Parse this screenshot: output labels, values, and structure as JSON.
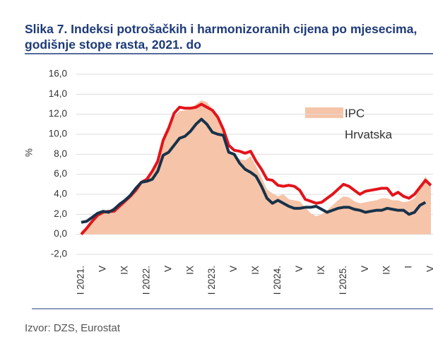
{
  "chart_data": {
    "type": "line",
    "title": "Slika 7. Indeksi potrošačkih i harmonizoranih cijena po mjesecima, godišnje stope rasta, 2021. do",
    "y_label": "%",
    "categories": [
      "I 2021.",
      null,
      null,
      null,
      "V",
      null,
      null,
      null,
      "IX",
      null,
      null,
      null,
      "I 2022.",
      null,
      null,
      null,
      "V",
      null,
      null,
      null,
      "IX",
      null,
      null,
      null,
      "I 2023.",
      null,
      null,
      null,
      "V",
      null,
      null,
      null,
      "IX",
      null,
      null,
      null,
      "I 2024.",
      null,
      null,
      null,
      "V",
      null,
      null,
      null,
      "IX",
      null,
      null,
      null,
      "I 2025.",
      null,
      null,
      null,
      "V",
      null,
      null,
      null,
      "IX",
      null,
      null,
      null,
      "I",
      null,
      null,
      null,
      "V"
    ],
    "series": [
      {
        "name": "IPC Hrvatska",
        "kind": "area",
        "color": "#f6c4a8",
        "values": [
          0.3,
          0.8,
          1.5,
          2.0,
          2.2,
          2.3,
          2.5,
          2.8,
          3.2,
          3.6,
          4.3,
          5.0,
          5.3,
          6.0,
          7.0,
          9.0,
          10.5,
          11.8,
          12.3,
          12.4,
          12.5,
          13.0,
          13.4,
          13.2,
          12.5,
          11.5,
          10.2,
          8.5,
          7.8,
          7.5,
          7.4,
          7.8,
          6.8,
          5.7,
          4.5,
          4.1,
          3.8,
          4.0,
          3.5,
          3.4,
          3.3,
          2.7,
          2.1,
          1.8,
          2.0,
          2.4,
          2.9,
          3.4,
          3.8,
          3.7,
          3.3,
          3.1,
          3.2,
          3.3,
          3.4,
          3.6,
          3.6,
          3.4,
          3.4,
          3.2,
          3.3,
          3.6,
          4.7,
          5.8,
          5.0
        ]
      },
      {
        "color": "#e3141b",
        "values": [
          0.0,
          0.6,
          1.3,
          1.9,
          2.2,
          2.3,
          2.3,
          2.8,
          3.3,
          3.8,
          4.4,
          5.2,
          5.5,
          6.3,
          7.3,
          9.4,
          10.6,
          12.1,
          12.7,
          12.6,
          12.6,
          12.7,
          13.0,
          12.7,
          12.4,
          11.7,
          10.5,
          8.9,
          8.4,
          8.3,
          8.1,
          8.3,
          7.3,
          6.5,
          5.5,
          5.4,
          4.9,
          4.8,
          4.9,
          4.8,
          4.4,
          3.5,
          3.3,
          3.1,
          3.2,
          3.6,
          4.0,
          4.5,
          5.0,
          4.8,
          4.4,
          4.0,
          4.3,
          4.4,
          4.5,
          4.6,
          4.6,
          3.9,
          4.2,
          3.8,
          3.6,
          4.0,
          4.7,
          5.4,
          4.9
        ]
      },
      {
        "color": "#17324a",
        "values": [
          1.2,
          1.3,
          1.7,
          2.1,
          2.3,
          2.2,
          2.5,
          3.0,
          3.4,
          3.9,
          4.6,
          5.2,
          5.3,
          5.5,
          6.3,
          7.9,
          8.2,
          8.9,
          9.6,
          9.8,
          10.3,
          11.0,
          11.5,
          11.0,
          10.2,
          10.0,
          9.9,
          8.2,
          8.0,
          7.1,
          6.5,
          6.2,
          5.8,
          4.8,
          3.6,
          3.1,
          3.4,
          3.1,
          2.8,
          2.6,
          2.6,
          2.7,
          2.7,
          2.8,
          2.5,
          2.2,
          2.4,
          2.6,
          2.7,
          2.7,
          2.5,
          2.4,
          2.2,
          2.3,
          2.4,
          2.4,
          2.6,
          2.5,
          2.4,
          2.4,
          2.0,
          2.2,
          2.9,
          3.2,
          null
        ]
      }
    ],
    "ylim": [
      -2,
      16
    ],
    "yticks": [
      {
        "value": -2,
        "label": "-2,0"
      },
      {
        "value": 0,
        "label": "0,0"
      },
      {
        "value": 2,
        "label": "2,0"
      },
      {
        "value": 4,
        "label": "4,0"
      },
      {
        "value": 6,
        "label": "6,0"
      },
      {
        "value": 8,
        "label": "8,0"
      },
      {
        "value": 10,
        "label": "10,0"
      },
      {
        "value": 12,
        "label": "12,0"
      },
      {
        "value": 14,
        "label": "14,0"
      },
      {
        "value": 16,
        "label": "16,0"
      }
    ],
    "grid": true,
    "source": "Izvor: DZS, Eurostat"
  }
}
